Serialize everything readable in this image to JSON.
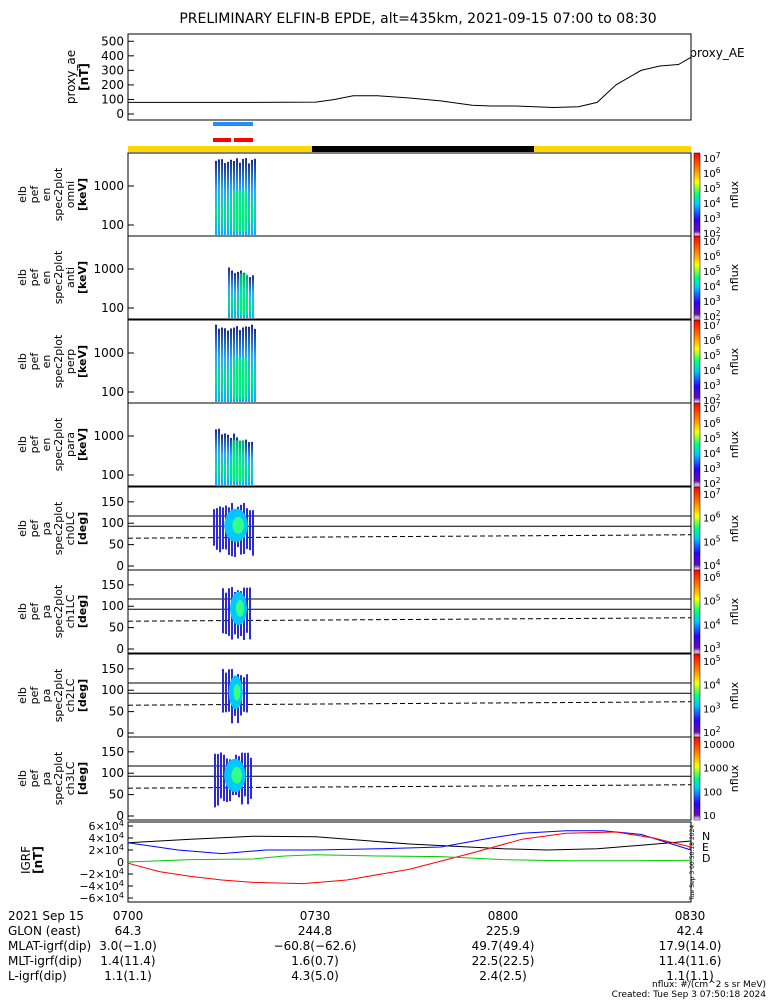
{
  "title": "PRELIMINARY ELFIN-B EPDE, alt=435km, 2021-09-15 07:00 to 08:30",
  "ae_panel": {
    "ylabel": "proxy_ae",
    "unit": "[nT]",
    "legend": "proxy_AE",
    "ticks": [
      "500",
      "400",
      "300",
      "200",
      "100",
      "0"
    ]
  },
  "spec_panels": [
    {
      "lines": [
        "elb",
        "pef",
        "en",
        "spec2plot",
        "omni",
        "[keV]"
      ],
      "ticks": [
        "1000",
        "100"
      ]
    },
    {
      "lines": [
        "elb",
        "pef",
        "en",
        "spec2plot",
        "anti",
        "[keV]"
      ],
      "ticks": [
        "1000",
        "100"
      ]
    },
    {
      "lines": [
        "elb",
        "pef",
        "en",
        "spec2plot",
        "perp",
        "[keV]"
      ],
      "ticks": [
        "1000",
        "100"
      ]
    },
    {
      "lines": [
        "elb",
        "pef",
        "en",
        "spec2plot",
        "para",
        "[keV]"
      ],
      "ticks": [
        "1000",
        "100"
      ]
    }
  ],
  "pa_panels": [
    {
      "lines": [
        "elb",
        "pef",
        "pa",
        "spec2plot",
        "ch0LC",
        "[deg]"
      ],
      "ticks": [
        "150",
        "100",
        "50",
        "0"
      ]
    },
    {
      "lines": [
        "elb",
        "pef",
        "pa",
        "spec2plot",
        "ch1LC",
        "[deg]"
      ],
      "ticks": [
        "150",
        "100",
        "50",
        "0"
      ]
    },
    {
      "lines": [
        "elb",
        "pef",
        "pa",
        "spec2plot",
        "ch2LC",
        "[deg]"
      ],
      "ticks": [
        "150",
        "100",
        "50",
        "0"
      ]
    },
    {
      "lines": [
        "elb",
        "pef",
        "pa",
        "spec2plot",
        "ch3LC",
        "[deg]"
      ],
      "ticks": [
        "150",
        "100",
        "50",
        "0"
      ]
    }
  ],
  "colorbars": {
    "unit": "nflux",
    "spec_labels": [
      "10^7",
      "10^6",
      "10^5",
      "10^4",
      "10^3",
      "10^2"
    ],
    "pa0_labels": [
      "10^7",
      "10^6",
      "10^5",
      "10^4"
    ],
    "pa1_labels": [
      "10^6",
      "10^5",
      "10^4",
      "10^3"
    ],
    "pa2_labels": [
      "10^5",
      "10^4",
      "10^3",
      "10^2"
    ],
    "pa3_labels": [
      "10000",
      "1000",
      "100",
      "10"
    ]
  },
  "igrf_panel": {
    "ylabel": "IGRF",
    "unit": "[nT]",
    "ticks": [
      "6×10^4",
      "4×10^4",
      "2×10^4",
      "0",
      "−2×10^4",
      "−4×10^4",
      "−6×10^4"
    ],
    "legend": [
      "N",
      "E",
      "D"
    ],
    "legend_colors": [
      "#0000ff",
      "#ff0000",
      "#00cc00"
    ],
    "side_text": "Tue Sep  3 00:50:18 2024"
  },
  "footer": {
    "rows": [
      {
        "label": "2021 Sep 15",
        "values": [
          "0700",
          "0730",
          "0800",
          "0830"
        ]
      },
      {
        "label": "GLON (east)",
        "values": [
          "64.3",
          "244.8",
          "225.9",
          "42.4"
        ]
      },
      {
        "label": "MLAT-igrf(dip)",
        "values": [
          "3.0(−1.0)",
          "−60.8(−62.6)",
          "49.7(49.4)",
          "17.9(14.0)"
        ]
      },
      {
        "label": "MLT-igrf(dip)",
        "values": [
          "1.4(11.4)",
          "1.6(0.7)",
          "22.5(22.5)",
          "11.4(11.6)"
        ]
      },
      {
        "label": "L-igrf(dip)",
        "values": [
          "1.1(1.1)",
          "4.3(5.0)",
          "2.4(2.5)",
          "1.1(1.1)"
        ]
      }
    ],
    "note_unit": "nflux: #/(cm^2 s sr MeV)",
    "created": "Created: Tue Sep  3 07:50:18 2024"
  },
  "chart_data": [
    {
      "type": "line",
      "title": "PRELIMINARY ELFIN-B EPDE, alt=435km, 2021-09-15 07:00 to 08:30",
      "ylabel": "proxy_ae [nT]",
      "x_unit": "minutes after 07:00",
      "xlim": [
        0,
        90
      ],
      "ylim": [
        0,
        550
      ],
      "series": [
        {
          "name": "proxy_AE",
          "x": [
            0,
            10,
            20,
            30,
            33,
            36,
            40,
            45,
            50,
            55,
            58,
            62,
            68,
            72,
            75,
            78,
            82,
            85,
            88,
            90
          ],
          "values": [
            80,
            80,
            80,
            82,
            100,
            125,
            125,
            110,
            90,
            60,
            55,
            55,
            45,
            50,
            80,
            200,
            300,
            330,
            340,
            390
          ]
        }
      ]
    },
    {
      "type": "line",
      "ylabel": "IGRF [nT]",
      "x_unit": "minutes after 07:00",
      "xlim": [
        0,
        90
      ],
      "ylim": [
        -60000,
        60000
      ],
      "series": [
        {
          "name": "N",
          "x": [
            0,
            10,
            20,
            30,
            45,
            60,
            67,
            75,
            82,
            90
          ],
          "values": [
            32000,
            38000,
            43000,
            42000,
            30000,
            22000,
            20000,
            22000,
            28000,
            35000
          ]
        },
        {
          "name": "E",
          "x": [
            0,
            8,
            15,
            22,
            30,
            40,
            50,
            58,
            63,
            70,
            76,
            82,
            90
          ],
          "values": [
            32000,
            20000,
            14000,
            20000,
            20000,
            22000,
            25000,
            40000,
            48000,
            52000,
            52000,
            46000,
            20000
          ]
        },
        {
          "name": "D",
          "x": [
            0,
            5,
            10,
            15,
            20,
            28,
            35,
            45,
            55,
            63,
            70,
            78,
            84,
            90
          ],
          "values": [
            -2000,
            -16000,
            -24000,
            -30000,
            -34000,
            -36000,
            -30000,
            -12000,
            15000,
            38000,
            48000,
            50000,
            40000,
            25000
          ]
        },
        {
          "name": "green",
          "x": [
            0,
            10,
            20,
            25,
            30,
            40,
            50,
            60,
            70,
            80,
            90
          ],
          "values": [
            0,
            4000,
            5000,
            10000,
            12000,
            10000,
            9000,
            4000,
            2000,
            2000,
            3000
          ]
        }
      ]
    }
  ]
}
